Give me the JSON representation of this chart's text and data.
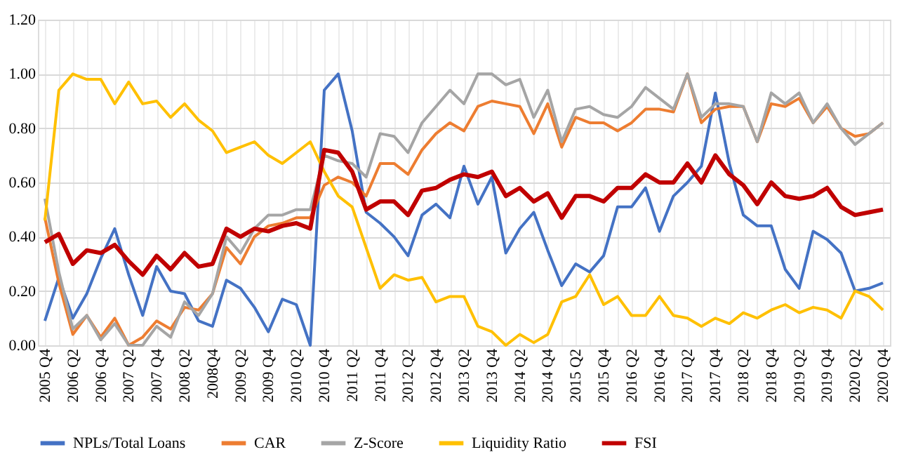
{
  "chart_data": {
    "type": "line",
    "categories": [
      "2005 Q4",
      null,
      "2006 Q2",
      null,
      "2006 Q4",
      null,
      "2007 Q2",
      null,
      "2007 Q4",
      null,
      "2008 Q2",
      null,
      "2008Q4",
      null,
      "2009 Q2",
      null,
      "2009 Q4",
      null,
      "2010 Q2",
      null,
      "2010 Q4",
      null,
      "2011 Q2",
      null,
      "2011 Q4",
      null,
      "2012 Q2",
      null,
      "2012 Q4",
      null,
      "2013 Q2",
      null,
      "2013 Q4",
      null,
      "2014 Q2",
      null,
      "2014 Q4",
      null,
      "2015 Q2",
      null,
      "2015 Q4",
      null,
      "2016 Q2",
      null,
      "2016 Q4",
      null,
      "2017 Q2",
      null,
      "2017 Q4",
      null,
      "2018 Q2",
      null,
      "2018 Q4",
      null,
      "2019 Q2",
      null,
      "2019 Q4",
      null,
      "2020 Q2",
      null,
      "2020 Q4"
    ],
    "series": [
      {
        "name": "NPLs/Total Loans",
        "color": "#4472c4",
        "values": [
          0.09,
          0.25,
          0.1,
          0.19,
          0.32,
          0.43,
          0.26,
          0.11,
          0.29,
          0.2,
          0.19,
          0.09,
          0.07,
          0.24,
          0.21,
          0.14,
          0.05,
          0.17,
          0.15,
          0.0,
          0.94,
          1.0,
          0.79,
          0.49,
          0.45,
          0.4,
          0.33,
          0.48,
          0.52,
          0.47,
          0.66,
          0.52,
          0.62,
          0.34,
          0.43,
          0.49,
          0.35,
          0.22,
          0.3,
          0.27,
          0.33,
          0.51,
          0.51,
          0.58,
          0.42,
          0.55,
          0.6,
          0.66,
          0.93,
          0.67,
          0.48,
          0.44,
          0.44,
          0.28,
          0.21,
          0.42,
          0.39,
          0.34,
          0.2,
          0.21,
          0.23
        ]
      },
      {
        "name": "CAR",
        "color": "#ed7d31",
        "values": [
          0.47,
          0.23,
          0.04,
          0.11,
          0.03,
          0.1,
          0.0,
          0.03,
          0.09,
          0.06,
          0.14,
          0.13,
          0.19,
          0.36,
          0.3,
          0.4,
          0.44,
          0.45,
          0.47,
          0.47,
          0.59,
          0.62,
          0.6,
          0.55,
          0.67,
          0.67,
          0.63,
          0.72,
          0.78,
          0.82,
          0.79,
          0.88,
          0.9,
          0.89,
          0.88,
          0.78,
          0.89,
          0.73,
          0.84,
          0.82,
          0.82,
          0.79,
          0.82,
          0.87,
          0.87,
          0.86,
          1.0,
          0.82,
          0.87,
          0.88,
          0.88,
          0.75,
          0.89,
          0.88,
          0.91,
          0.82,
          0.88,
          0.8,
          0.77,
          0.78,
          0.82
        ]
      },
      {
        "name": "Z-Score",
        "color": "#a5a5a5",
        "values": [
          0.54,
          0.27,
          0.06,
          0.11,
          0.02,
          0.08,
          0.0,
          0.0,
          0.07,
          0.03,
          0.16,
          0.11,
          0.19,
          0.4,
          0.34,
          0.43,
          0.48,
          0.48,
          0.5,
          0.5,
          0.7,
          0.68,
          0.67,
          0.62,
          0.78,
          0.77,
          0.71,
          0.82,
          0.88,
          0.94,
          0.89,
          1.0,
          1.0,
          0.96,
          0.98,
          0.84,
          0.94,
          0.75,
          0.87,
          0.88,
          0.85,
          0.84,
          0.88,
          0.95,
          0.91,
          0.87,
          1.0,
          0.84,
          0.89,
          0.89,
          0.88,
          0.75,
          0.93,
          0.89,
          0.93,
          0.82,
          0.89,
          0.8,
          0.74,
          0.78,
          0.82
        ]
      },
      {
        "name": "Liquidity Ratio",
        "color": "#ffc000",
        "values": [
          0.46,
          0.94,
          1.0,
          0.98,
          0.98,
          0.89,
          0.97,
          0.89,
          0.9,
          0.84,
          0.89,
          0.83,
          0.79,
          0.71,
          0.73,
          0.75,
          0.7,
          0.67,
          0.71,
          0.75,
          0.64,
          0.55,
          0.51,
          0.36,
          0.21,
          0.26,
          0.24,
          0.25,
          0.16,
          0.18,
          0.18,
          0.07,
          0.05,
          0.0,
          0.04,
          0.01,
          0.04,
          0.16,
          0.18,
          0.26,
          0.15,
          0.18,
          0.11,
          0.11,
          0.18,
          0.11,
          0.1,
          0.07,
          0.1,
          0.08,
          0.12,
          0.1,
          0.13,
          0.15,
          0.12,
          0.14,
          0.13,
          0.1,
          0.2,
          0.18,
          0.13
        ]
      },
      {
        "name": "FSI",
        "color": "#c00000",
        "values": [
          0.38,
          0.41,
          0.3,
          0.35,
          0.34,
          0.37,
          0.31,
          0.26,
          0.33,
          0.28,
          0.34,
          0.29,
          0.3,
          0.43,
          0.4,
          0.43,
          0.42,
          0.44,
          0.45,
          0.43,
          0.72,
          0.71,
          0.64,
          0.5,
          0.53,
          0.53,
          0.48,
          0.57,
          0.58,
          0.61,
          0.63,
          0.62,
          0.64,
          0.55,
          0.58,
          0.53,
          0.56,
          0.47,
          0.55,
          0.55,
          0.53,
          0.58,
          0.58,
          0.63,
          0.6,
          0.6,
          0.67,
          0.6,
          0.7,
          0.63,
          0.59,
          0.52,
          0.6,
          0.55,
          0.54,
          0.55,
          0.58,
          0.51,
          0.48,
          0.49,
          0.5
        ]
      }
    ],
    "ylim": [
      0,
      1.2
    ],
    "yticks": [
      {
        "value": 0,
        "label": "0.00"
      },
      {
        "value": 0.2,
        "label": "0.20"
      },
      {
        "value": 0.4,
        "label": "0.40"
      },
      {
        "value": 0.6,
        "label": "0.60"
      },
      {
        "value": 0.8,
        "label": "0.80"
      },
      {
        "value": 1.0,
        "label": "1.00"
      },
      {
        "value": 1.2,
        "label": "1.20"
      }
    ],
    "grid": true,
    "legend": "bottom",
    "line_style": "solid",
    "marker": "none"
  }
}
